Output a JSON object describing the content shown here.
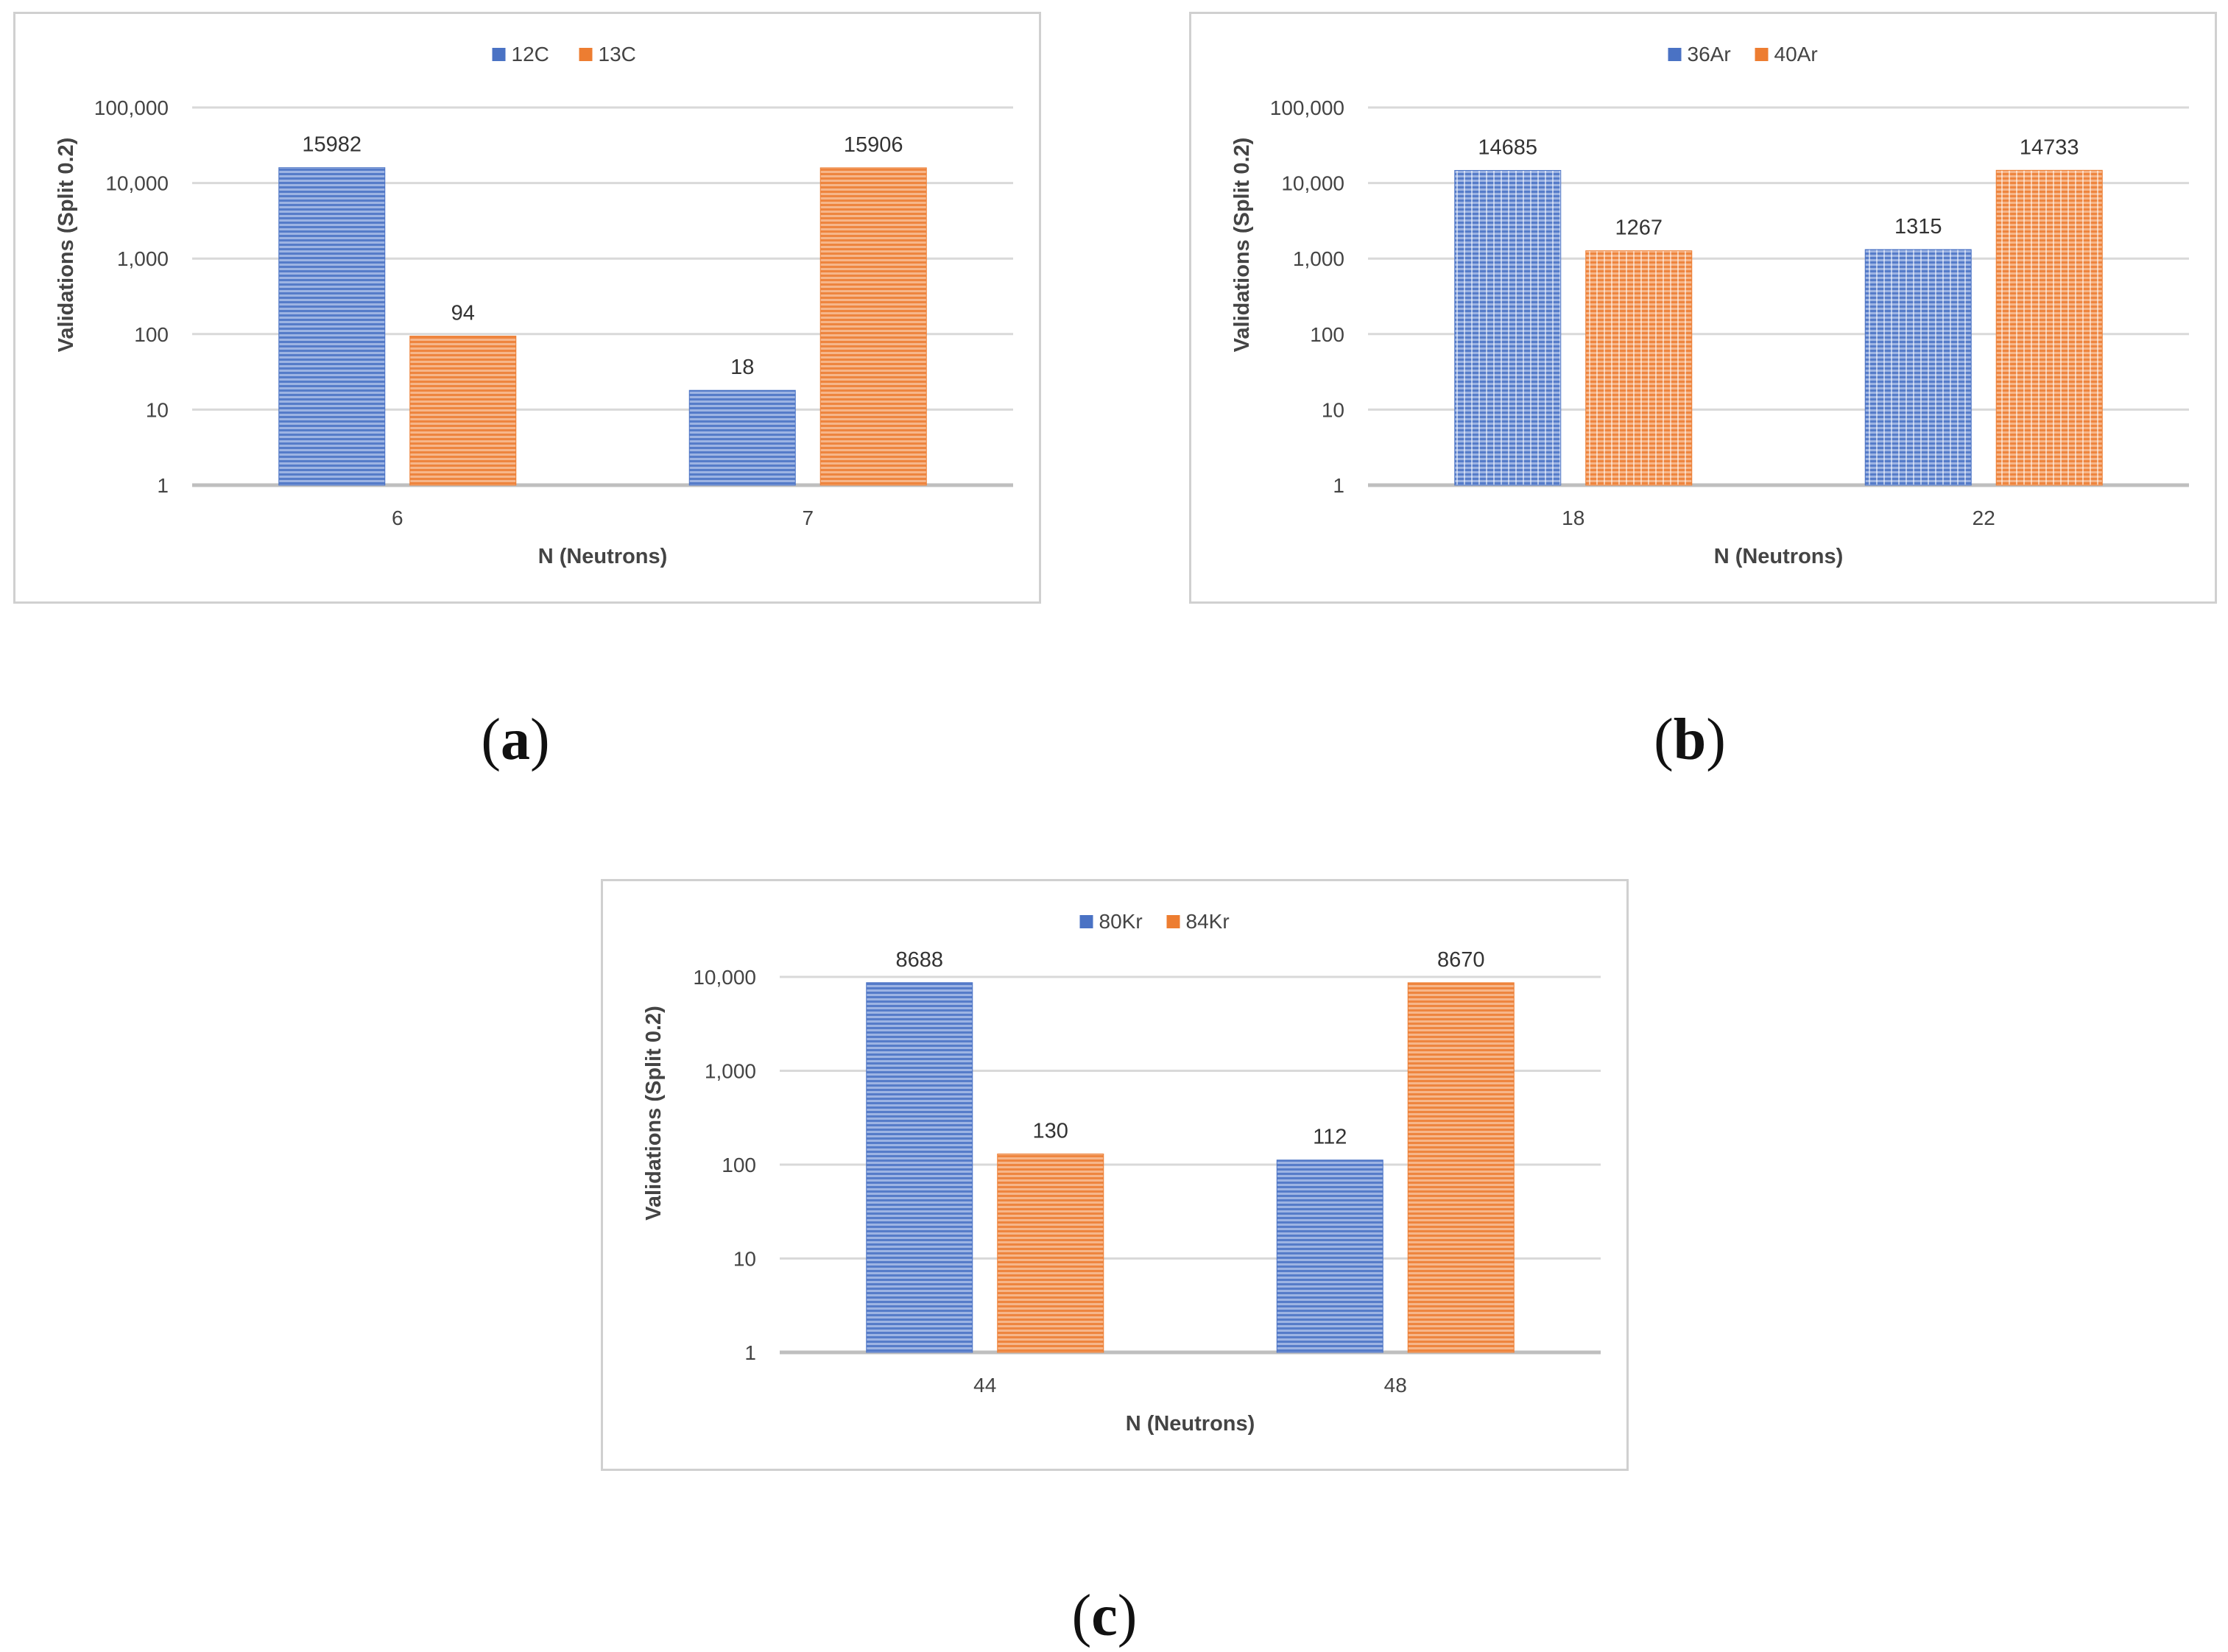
{
  "captions": [
    "a",
    "b",
    "c"
  ],
  "colors": {
    "series1": "#4a72c4",
    "series2": "#ed7d31",
    "series1_light": "#9db4e3",
    "series2_light": "#f6b68a",
    "grid": "#d9d9d9",
    "axis": "#bfbfbf"
  },
  "chart_data": [
    {
      "type": "bar",
      "scale": "log",
      "xlabel": "N (Neutrons)",
      "ylabel": "Validations (Split 0.2)",
      "ylim": [
        1,
        100000
      ],
      "yticks": [
        "1",
        "10",
        "100",
        "1,000",
        "10,000",
        "100,000"
      ],
      "categories": [
        "6",
        "7"
      ],
      "legend_position": "top-center",
      "series": [
        {
          "name": "12C",
          "values": [
            15982,
            18
          ],
          "labels": [
            "15982",
            "18"
          ]
        },
        {
          "name": "13C",
          "values": [
            94,
            15906
          ],
          "labels": [
            "94",
            "15906"
          ]
        }
      ]
    },
    {
      "type": "bar",
      "scale": "log",
      "xlabel": "N (Neutrons)",
      "ylabel": "Validations (Split 0.2)",
      "ylim": [
        1,
        100000
      ],
      "yticks": [
        "1",
        "10",
        "100",
        "1,000",
        "10,000",
        "100,000"
      ],
      "categories": [
        "18",
        "22"
      ],
      "legend_position": "top-center",
      "series": [
        {
          "name": "36Ar",
          "values": [
            14685,
            1315
          ],
          "labels": [
            "14685",
            "1315"
          ]
        },
        {
          "name": "40Ar",
          "values": [
            1267,
            14733
          ],
          "labels": [
            "1267",
            "14733"
          ]
        }
      ]
    },
    {
      "type": "bar",
      "scale": "log",
      "xlabel": "N (Neutrons)",
      "ylabel": "Validations (Split 0.2)",
      "ylim": [
        1,
        10000
      ],
      "yticks": [
        "1",
        "10",
        "100",
        "1,000",
        "10,000"
      ],
      "categories": [
        "44",
        "48"
      ],
      "legend_position": "top-center",
      "series": [
        {
          "name": "80Kr",
          "values": [
            8688,
            112
          ],
          "labels": [
            "8688",
            "112"
          ]
        },
        {
          "name": "84Kr",
          "values": [
            130,
            8670
          ],
          "labels": [
            "130",
            "8670"
          ]
        }
      ]
    }
  ]
}
